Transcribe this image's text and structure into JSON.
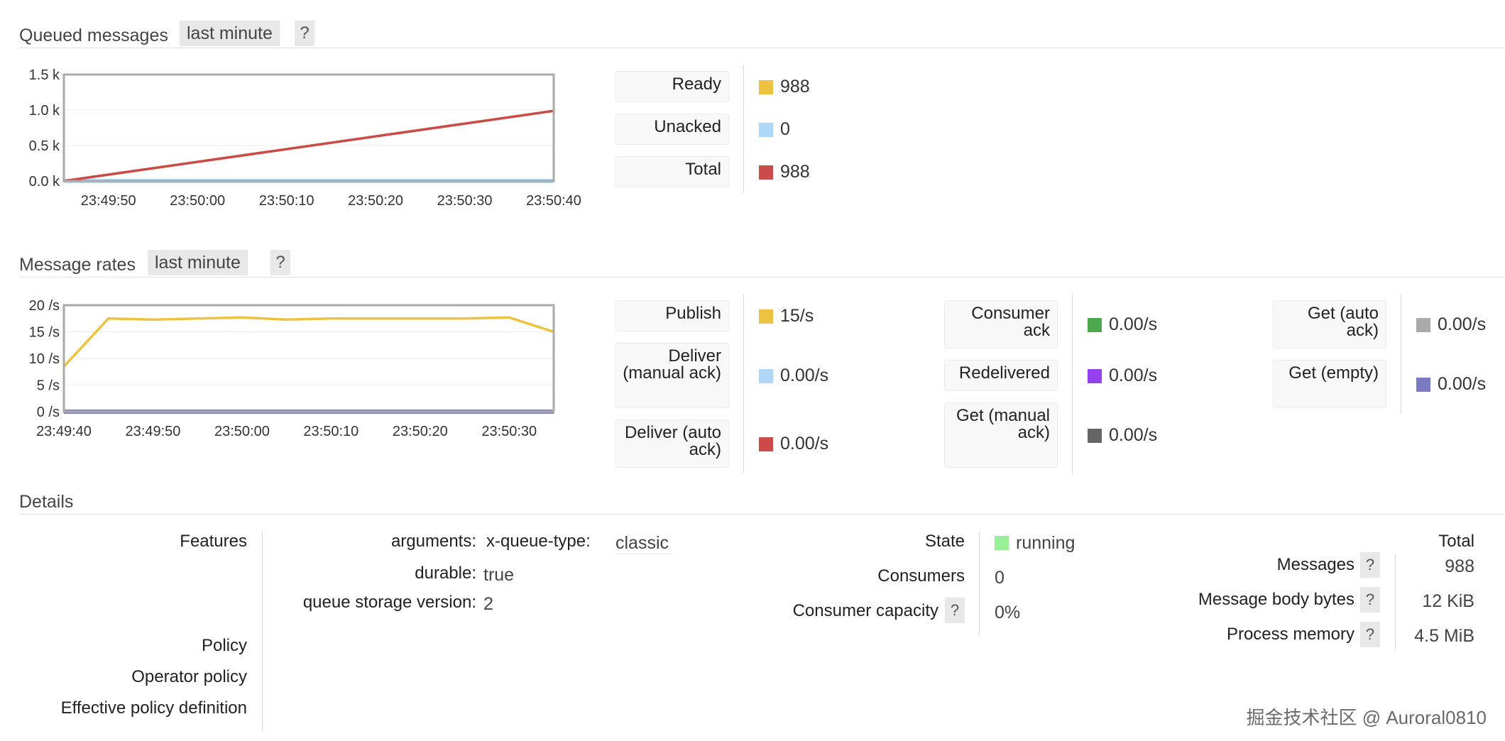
{
  "queued": {
    "title": "Queued messages",
    "range": "last minute",
    "help": "?",
    "chart": {
      "y_ticks": [
        "1.5 k",
        "1.0 k",
        "0.5 k",
        "0.0 k"
      ],
      "x_ticks": [
        "23:49:50",
        "23:50:00",
        "23:50:10",
        "23:50:20",
        "23:50:30",
        "23:50:40"
      ]
    },
    "legend": [
      {
        "label": "Ready",
        "value": "988",
        "color": "#edc240"
      },
      {
        "label": "Unacked",
        "value": "0",
        "color": "#afd8f8"
      },
      {
        "label": "Total",
        "value": "988",
        "color": "#cb4b4b"
      }
    ]
  },
  "rates": {
    "title": "Message rates",
    "range": "last minute",
    "help": "?",
    "chart": {
      "y_ticks": [
        "20 /s",
        "15 /s",
        "10 /s",
        "5 /s",
        "0 /s"
      ],
      "x_ticks": [
        "23:49:40",
        "23:49:50",
        "23:50:00",
        "23:50:10",
        "23:50:20",
        "23:50:30"
      ]
    },
    "col1": [
      {
        "label": "Publish",
        "value": "15/s",
        "color": "#edc240"
      },
      {
        "label": "Deliver (manual ack)",
        "value": "0.00/s",
        "color": "#afd8f8"
      },
      {
        "label": "Deliver (auto ack)",
        "value": "0.00/s",
        "color": "#cb4b4b"
      }
    ],
    "col2": [
      {
        "label": "Consumer ack",
        "value": "0.00/s",
        "color": "#4da74d"
      },
      {
        "label": "Redelivered",
        "value": "0.00/s",
        "color": "#9440ed"
      },
      {
        "label": "Get (manual ack)",
        "value": "0.00/s",
        "color": "#666666"
      }
    ],
    "col3": [
      {
        "label": "Get (auto ack)",
        "value": "0.00/s",
        "color": "#aaaaaa"
      },
      {
        "label": "Get (empty)",
        "value": "0.00/s",
        "color": "#7c79c3"
      }
    ]
  },
  "chart_data": [
    {
      "type": "line",
      "x": [
        "23:49:45",
        "23:50:40"
      ],
      "x_ticks": [
        "23:49:50",
        "23:50:00",
        "23:50:10",
        "23:50:20",
        "23:50:30",
        "23:50:40"
      ],
      "y_ticks": [
        "1.5 k",
        "1.0 k",
        "0.5 k",
        "0.0 k"
      ],
      "ylim": [
        0,
        1500
      ],
      "grid": true,
      "series": [
        {
          "name": "Ready",
          "color": "#edc240",
          "values": [
            0,
            988
          ]
        },
        {
          "name": "Unacked",
          "color": "#afd8f8",
          "values": [
            0,
            0
          ]
        },
        {
          "name": "Total",
          "color": "#cb4b4b",
          "values": [
            0,
            988
          ]
        }
      ]
    },
    {
      "type": "line",
      "x": [
        "23:49:40",
        "23:49:45",
        "23:49:50",
        "23:49:55",
        "23:50:00",
        "23:50:05",
        "23:50:10",
        "23:50:15",
        "23:50:20",
        "23:50:25",
        "23:50:30",
        "23:50:35"
      ],
      "x_ticks": [
        "23:49:40",
        "23:49:50",
        "23:50:00",
        "23:50:10",
        "23:50:20",
        "23:50:30"
      ],
      "y_ticks": [
        "20 /s",
        "15 /s",
        "10 /s",
        "5 /s",
        "0 /s"
      ],
      "ylim": [
        0,
        20
      ],
      "grid": true,
      "series": [
        {
          "name": "Publish",
          "color": "#edc240",
          "values": [
            8.5,
            17.5,
            17.3,
            17.5,
            17.7,
            17.3,
            17.5,
            17.5,
            17.5,
            17.5,
            17.7,
            15
          ]
        },
        {
          "name": "Deliver (manual ack)",
          "color": "#afd8f8",
          "values": [
            0,
            0,
            0,
            0,
            0,
            0,
            0,
            0,
            0,
            0,
            0,
            0
          ]
        },
        {
          "name": "Get (empty)",
          "color": "#7c79c3",
          "values": [
            0,
            0,
            0,
            0,
            0,
            0,
            0,
            0,
            0,
            0,
            0,
            0
          ]
        }
      ]
    }
  ],
  "details": {
    "title": "Details",
    "labels": {
      "features": "Features",
      "policy": "Policy",
      "operator_policy": "Operator policy",
      "effective": "Effective policy definition"
    },
    "features": {
      "arguments_label": "arguments:",
      "arg_key": "x-queue-type:",
      "arg_value": "classic",
      "durable_label": "durable:",
      "durable_value": "true",
      "storage_label": "queue storage version:",
      "storage_value": "2"
    },
    "state": {
      "state_label": "State",
      "state_value": "running",
      "state_color": "#99ee99",
      "consumers_label": "Consumers",
      "consumers_value": "0",
      "capacity_label": "Consumer capacity",
      "capacity_value": "0%",
      "help": "?"
    },
    "totals": {
      "header": "Total",
      "rows": [
        {
          "label": "Messages",
          "value": "988"
        },
        {
          "label": "Message body bytes",
          "value": "12 KiB"
        },
        {
          "label": "Process memory",
          "value": "4.5 MiB"
        }
      ],
      "help": "?"
    }
  },
  "watermark": "掘金技术社区 @ Auroral0810"
}
